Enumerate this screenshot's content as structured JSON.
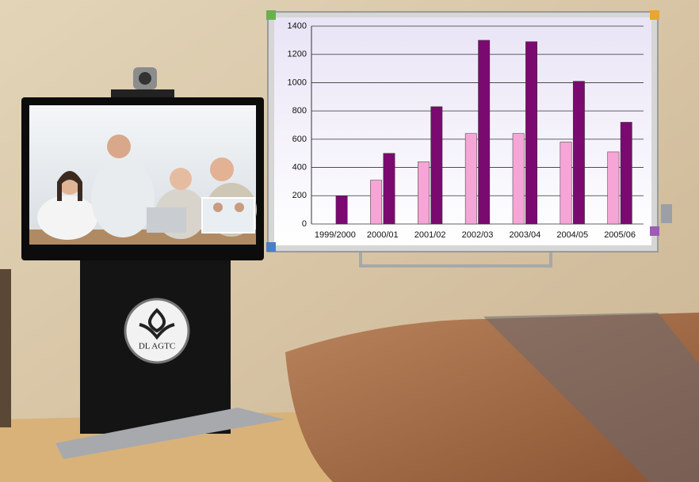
{
  "chart_data": {
    "type": "bar",
    "categories": [
      "1999/2000",
      "2000/01",
      "2001/02",
      "2002/03",
      "2003/04",
      "2004/05",
      "2005/06"
    ],
    "series": [
      {
        "color": "#f5a6d6",
        "values": [
          null,
          310,
          440,
          640,
          640,
          580,
          510
        ]
      },
      {
        "color": "#7b0a70",
        "values": [
          200,
          500,
          830,
          1300,
          1290,
          1010,
          720
        ]
      }
    ],
    "ylim": [
      0,
      1400
    ],
    "yticks": [
      0,
      200,
      400,
      600,
      800,
      1000,
      1200,
      1400
    ],
    "grid": true
  },
  "logo_text": "DL AGTC"
}
